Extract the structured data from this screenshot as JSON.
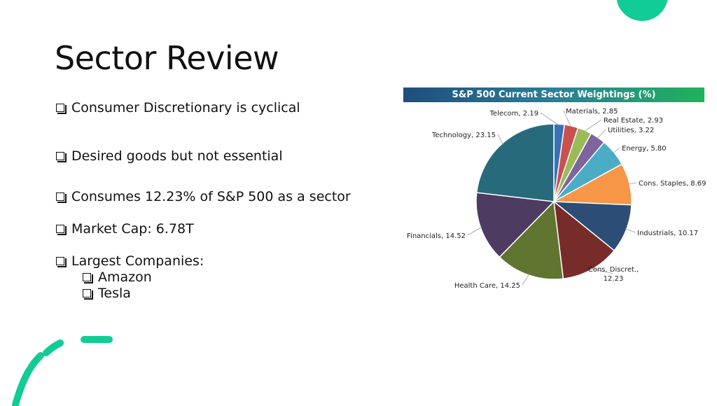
{
  "slide": {
    "title": "Sector Review",
    "bullets": [
      {
        "text": "Consumer Discretionary is cyclical",
        "level": 0
      },
      {
        "text": "Desired goods but not essential",
        "level": 0
      },
      {
        "text": "Consumes 12.23% of S&P 500 as a sector",
        "level": 0
      },
      {
        "text": "Market Cap:  6.78T",
        "level": 0
      },
      {
        "text": "Largest Companies:",
        "level": 0
      },
      {
        "text": "Amazon",
        "level": 1
      },
      {
        "text": "Tesla",
        "level": 1
      }
    ],
    "bullet_icon": "checkbox-icon",
    "accent_color": "#12cc96"
  },
  "chart_data": {
    "type": "pie",
    "title": "S&P 500 Current Sector Weightings (%)",
    "slices": [
      {
        "label": "Telecom",
        "value": 2.19,
        "display": "2.19",
        "color": "#3b6fb6"
      },
      {
        "label": "Materials",
        "value": 2.85,
        "display": "2.85",
        "color": "#c9504d"
      },
      {
        "label": "Real Estate",
        "value": 2.93,
        "display": "2.93",
        "color": "#9bbb59"
      },
      {
        "label": "Utilities",
        "value": 3.22,
        "display": "3.22",
        "color": "#7f64a0"
      },
      {
        "label": "Energy",
        "value": 5.8,
        "display": "5.80",
        "color": "#4bacc6"
      },
      {
        "label": "Cons. Staples",
        "value": 8.69,
        "display": "8.69",
        "color": "#f79646"
      },
      {
        "label": "Industrials",
        "value": 10.17,
        "display": "10.17",
        "color": "#2c4d75"
      },
      {
        "label": "Cons. Discret.,",
        "value": 12.23,
        "display": "12.23",
        "color": "#772c2a"
      },
      {
        "label": "Health Care",
        "value": 14.25,
        "display": "14.25",
        "color": "#5f7530"
      },
      {
        "label": "Financials",
        "value": 14.52,
        "display": "14.52",
        "color": "#4d3b62"
      },
      {
        "label": "Technology",
        "value": 23.15,
        "display": "23.15",
        "color": "#276a7c"
      }
    ]
  }
}
